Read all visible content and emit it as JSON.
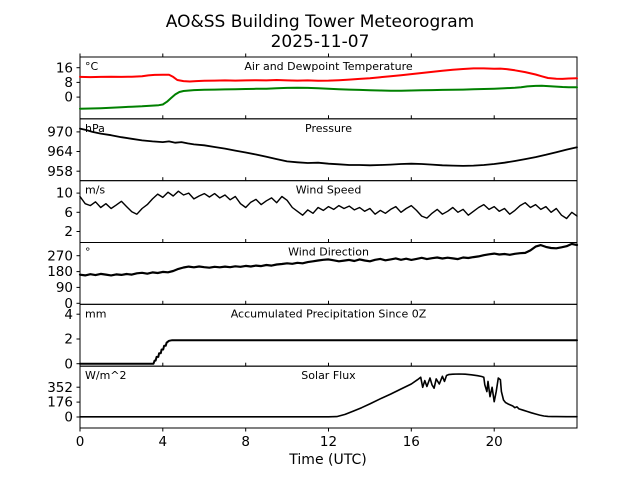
{
  "chart_data": {
    "type": "line",
    "title": "AO&SS Building Tower Meteorogram",
    "subtitle": "2025-11-07",
    "xlabel": "Time (UTC)",
    "xlim": [
      0,
      24
    ],
    "xticks": [
      0,
      4,
      8,
      12,
      16,
      20
    ],
    "grid": false,
    "legend": "none",
    "panels": [
      {
        "title": "Air and Dewpoint Temperature",
        "unit": "°C",
        "ylim": [
          -11.8,
          21.8
        ],
        "yticks": [
          0,
          8,
          16
        ],
        "series": [
          {
            "name": "Air Temperature",
            "color": "#ff0000",
            "width": 2,
            "x": [
              0,
              0.5,
              1,
              1.5,
              2,
              2.5,
              3,
              3.3,
              3.6,
              4,
              4.3,
              4.5,
              4.7,
              5,
              5.3,
              5.6,
              6,
              6.5,
              7,
              7.5,
              8,
              8.5,
              9,
              9.5,
              10,
              10.5,
              11,
              11.5,
              12,
              12.5,
              13,
              13.5,
              14,
              14.5,
              15,
              15.5,
              16,
              16.5,
              17,
              17.5,
              18,
              18.5,
              19,
              19.5,
              20,
              20.3,
              20.6,
              21,
              21.5,
              22,
              22.3,
              22.6,
              23,
              23.3,
              23.6,
              24
            ],
            "y": [
              11,
              10.9,
              11,
              11.1,
              11,
              11.1,
              11.3,
              11.8,
              12.1,
              12.2,
              12.2,
              11,
              9.3,
              8.7,
              8.5,
              8.7,
              8.9,
              9,
              9.1,
              9,
              9.1,
              9.2,
              9.1,
              9.3,
              9.1,
              9,
              9.1,
              8.9,
              9,
              9.2,
              9.5,
              9.9,
              10.3,
              10.8,
              11.3,
              11.9,
              12.5,
              13.1,
              13.7,
              14.3,
              14.9,
              15.3,
              15.6,
              15.6,
              15.4,
              15.5,
              15.2,
              14.6,
              13.6,
              12.3,
              11.3,
              10.4,
              10,
              9.9,
              10.1,
              10.2
            ]
          },
          {
            "name": "Dewpoint Temperature",
            "color": "#008000",
            "width": 2,
            "x": [
              0,
              0.5,
              1,
              1.5,
              2,
              2.5,
              3,
              3.5,
              3.8,
              4,
              4.2,
              4.4,
              4.6,
              4.8,
              5,
              5.5,
              6,
              6.5,
              7,
              7.5,
              8,
              8.5,
              9,
              9.5,
              10,
              10.5,
              11,
              11.5,
              12,
              12.5,
              13,
              13.5,
              14,
              14.5,
              15,
              15.5,
              16,
              16.5,
              17,
              17.5,
              18,
              18.5,
              19,
              19.5,
              20,
              20.5,
              21,
              21.3,
              21.6,
              22,
              22.3,
              22.6,
              23,
              23.3,
              23.6,
              24
            ],
            "y": [
              -6.3,
              -6.2,
              -6,
              -5.8,
              -5.5,
              -5.2,
              -5,
              -4.6,
              -4.4,
              -4,
              -2.5,
              -0.5,
              1.5,
              2.8,
              3.3,
              3.8,
              4,
              4.1,
              4.2,
              4.3,
              4.4,
              4.5,
              4.6,
              4.8,
              5,
              5.1,
              5,
              4.8,
              4.6,
              4.3,
              4.1,
              3.9,
              3.7,
              3.6,
              3.5,
              3.5,
              3.6,
              3.7,
              3.8,
              3.9,
              4,
              4.1,
              4.3,
              4.4,
              4.6,
              4.8,
              5.1,
              5.4,
              5.8,
              6.1,
              6.2,
              6,
              5.7,
              5.5,
              5.4,
              5.4
            ]
          }
        ]
      },
      {
        "title": "Pressure",
        "unit": "hPa",
        "ylim": [
          955.1,
          974.0
        ],
        "yticks": [
          958,
          964,
          970
        ],
        "series": [
          {
            "name": "Pressure",
            "color": "#000000",
            "width": 1.8,
            "x": [
              0,
              0.3,
              0.6,
              1,
              1.5,
              2,
              2.5,
              3,
              3.5,
              4,
              4.3,
              4.6,
              4.9,
              5.2,
              5.5,
              6,
              6.5,
              7,
              7.5,
              8,
              8.5,
              9,
              9.5,
              10,
              10.5,
              11,
              11.5,
              12,
              12.5,
              13,
              13.5,
              14,
              14.5,
              15,
              15.5,
              16,
              16.5,
              17,
              17.5,
              18,
              18.5,
              19,
              19.5,
              20,
              20.5,
              21,
              21.5,
              22,
              22.5,
              23,
              23.5,
              24
            ],
            "y": [
              971,
              970.6,
              970,
              969.5,
              969,
              968.4,
              967.9,
              967.4,
              967.1,
              966.9,
              967.1,
              966.7,
              966.9,
              966.5,
              966.2,
              965.9,
              965.4,
              964.9,
              964.3,
              963.7,
              963.1,
              962.4,
              961.7,
              961,
              960.7,
              960.5,
              960.6,
              960.3,
              960.1,
              959.9,
              959.9,
              959.8,
              959.9,
              960,
              960.2,
              960.3,
              960.2,
              960,
              959.8,
              959.7,
              959.6,
              959.7,
              959.9,
              960.2,
              960.6,
              961.1,
              961.7,
              962.3,
              963,
              963.8,
              964.6,
              965.3
            ]
          }
        ]
      },
      {
        "title": "Wind Speed",
        "unit": "m/s",
        "ylim": [
          -0.3,
          12.6
        ],
        "yticks": [
          2,
          6,
          10
        ],
        "series": [
          {
            "name": "Wind Speed",
            "color": "#000000",
            "width": 1.4,
            "x_start": 0,
            "x_step": 0.25,
            "y": [
              9.3,
              7.8,
              7.4,
              8.2,
              7.0,
              7.8,
              6.8,
              7.5,
              8.3,
              7.2,
              6.1,
              5.6,
              6.8,
              7.6,
              8.8,
              9.8,
              9.1,
              10.2,
              9.4,
              10.4,
              9.6,
              10.0,
              8.8,
              9.4,
              9.9,
              9.2,
              9.9,
              9.0,
              9.6,
              8.6,
              9.3,
              7.8,
              7.0,
              8.1,
              8.7,
              7.6,
              8.4,
              9.0,
              8.0,
              9.3,
              8.5,
              7.0,
              6.2,
              5.4,
              6.5,
              5.8,
              7.0,
              6.4,
              7.2,
              6.6,
              7.4,
              6.8,
              7.3,
              6.5,
              7.0,
              6.2,
              6.8,
              5.6,
              6.4,
              5.8,
              6.6,
              7.2,
              6.0,
              6.8,
              7.4,
              6.4,
              5.2,
              4.8,
              5.8,
              6.6,
              5.6,
              6.2,
              7.0,
              6.0,
              6.6,
              5.4,
              6.2,
              7.0,
              7.6,
              6.6,
              7.2,
              6.2,
              6.8,
              5.6,
              6.4,
              7.4,
              8.0,
              7.0,
              7.6,
              6.6,
              7.2,
              6.0,
              6.8,
              5.4,
              4.7,
              6.0,
              5.2
            ]
          }
        ]
      },
      {
        "title": "Wind Direction",
        "unit": "°",
        "ylim": [
          -6,
          345
        ],
        "yticks": [
          0,
          90,
          180,
          270
        ],
        "series": [
          {
            "name": "Wind Direction",
            "color": "#000000",
            "width": 2.2,
            "x_start": 0,
            "x_step": 0.25,
            "y": [
              162,
              158,
              165,
              160,
              167,
              163,
              158,
              164,
              161,
              166,
              163,
              170,
              173,
              168,
              175,
              172,
              178,
              176,
              183,
              195,
              203,
              208,
              204,
              209,
              205,
              202,
              207,
              204,
              208,
              205,
              210,
              207,
              212,
              209,
              214,
              211,
              217,
              214,
              220,
              223,
              227,
              224,
              230,
              227,
              234,
              238,
              243,
              247,
              249,
              244,
              238,
              242,
              246,
              240,
              249,
              243,
              238,
              247,
              252,
              244,
              249,
              255,
              247,
              253,
              246,
              252,
              258,
              251,
              256,
              260,
              254,
              259,
              255,
              251,
              260,
              257,
              262,
              266,
              273,
              278,
              282,
              277,
              280,
              275,
              281,
              284,
              286,
              300,
              322,
              330,
              320,
              314,
              312,
              318,
              324,
              337,
              331
            ]
          }
        ]
      },
      {
        "title": "Accumulated Precipitation Since 0Z",
        "unit": "mm",
        "ylim": [
          -0.2,
          4.8
        ],
        "yticks": [
          0,
          2,
          4
        ],
        "series": [
          {
            "name": "Accumulated Precipitation",
            "color": "#000000",
            "width": 2,
            "x": [
              0,
              3.55,
              3.6,
              3.65,
              3.7,
              3.78,
              3.82,
              3.9,
              3.94,
              4.02,
              4.06,
              4.14,
              4.18,
              4.3,
              4.45,
              24
            ],
            "y": [
              0,
              0,
              0.25,
              0.25,
              0.55,
              0.55,
              0.85,
              0.85,
              1.15,
              1.15,
              1.45,
              1.45,
              1.7,
              1.85,
              1.9,
              1.9
            ]
          }
        ]
      },
      {
        "title": "Solar Flux",
        "unit": "W/m^2",
        "ylim": [
          -130,
          600
        ],
        "yticks": [
          0,
          176,
          352
        ],
        "series": [
          {
            "name": "Solar Flux",
            "color": "#000000",
            "width": 1.6,
            "x": [
              0,
              2,
              4,
              6,
              8,
              10,
              12,
              12.4,
              12.8,
              13.2,
              13.6,
              14,
              14.5,
              15,
              15.5,
              16,
              16.3,
              16.45,
              16.55,
              16.65,
              16.75,
              16.9,
              17,
              17.1,
              17.2,
              17.35,
              17.5,
              17.6,
              17.7,
              17.8,
              18,
              18.3,
              18.6,
              18.9,
              19.2,
              19.4,
              19.5,
              19.55,
              19.65,
              19.7,
              19.8,
              19.9,
              20,
              20.1,
              20.2,
              20.3,
              20.35,
              20.45,
              20.55,
              20.7,
              20.9,
              21,
              21.1,
              21.2,
              21.4,
              21.6,
              21.8,
              22,
              22.2,
              22.4,
              22.6,
              22.8,
              23,
              23.5,
              24
            ],
            "y": [
              2,
              2,
              2,
              2,
              2,
              2,
              2,
              4,
              30,
              70,
              110,
              155,
              215,
              270,
              330,
              390,
              440,
              470,
              350,
              430,
              360,
              460,
              380,
              340,
              450,
              390,
              480,
              420,
              490,
              500,
              505,
              508,
              505,
              498,
              488,
              478,
              470,
              380,
              300,
              420,
              240,
              350,
              180,
              300,
              460,
              440,
              300,
              200,
              170,
              150,
              130,
              110,
              120,
              95,
              80,
              65,
              50,
              35,
              22,
              12,
              7,
              5,
              4,
              3,
              3
            ]
          }
        ]
      }
    ]
  }
}
